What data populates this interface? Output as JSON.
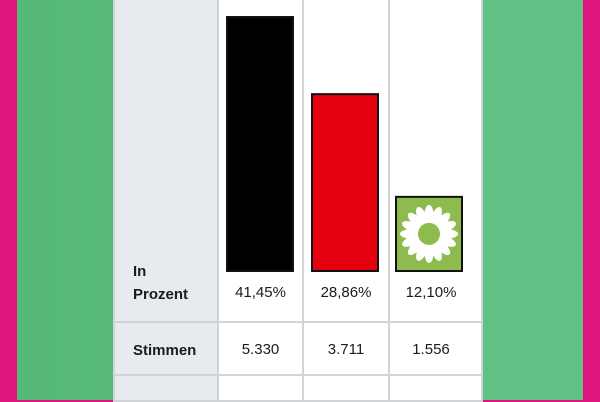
{
  "chart_data": {
    "type": "bar",
    "categories": [
      "",
      "",
      ""
    ],
    "values": [
      41.45,
      28.86,
      12.1
    ],
    "value_labels": [
      "41,45%",
      "28,86%",
      "12,10%"
    ],
    "votes": [
      "5.330",
      "3.711",
      "1.556"
    ],
    "colors": [
      "#000000",
      "#e3000f",
      "#8dbb4d"
    ],
    "third_bar_icon": "sunflower-icon",
    "rows": {
      "percent_label_line1": "In",
      "percent_label_line2": "Prozent",
      "votes_label": "Stimmen"
    },
    "ylim": [
      0,
      41.45
    ]
  },
  "colors": {
    "frame": "#e0147e",
    "background": "#5fbe82",
    "table": "#ffffff",
    "label_column": "#e7eaee"
  }
}
